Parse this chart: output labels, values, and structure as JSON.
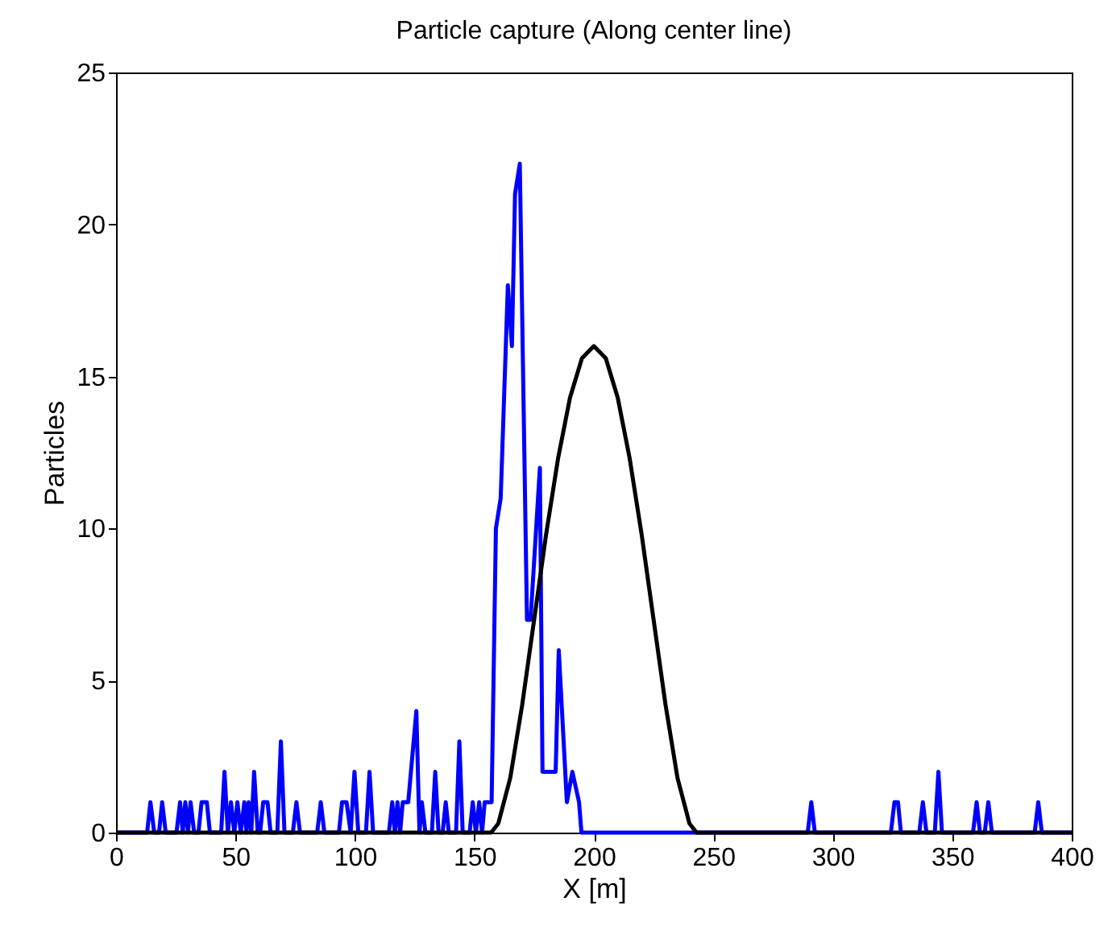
{
  "chart_data": {
    "type": "line",
    "title": "Particle capture (Along center line)",
    "xlabel": "X [m]",
    "ylabel": "Particles",
    "xlim": [
      0,
      400
    ],
    "xticks": [
      0,
      50,
      100,
      150,
      200,
      250,
      300,
      350,
      400
    ],
    "ylim": [
      0,
      25
    ],
    "yticks": [
      0,
      5,
      10,
      15,
      20,
      25
    ],
    "grid": false,
    "legend": false,
    "series": [
      {
        "color": "#0000ff",
        "x": [
          0,
          13,
          14.4,
          16,
          18,
          19.3,
          20.8,
          25.3,
          26.8,
          27.9,
          29,
          30.1,
          31.2,
          32.7,
          34.5,
          35.8,
          38,
          39.3,
          44,
          45.4,
          46.8,
          48.1,
          49.5,
          50.8,
          52.2,
          53.7,
          54.6,
          55.5,
          56.6,
          57.8,
          59.3,
          60.3,
          61.6,
          63.4,
          64.7,
          67.5,
          69,
          70.5,
          74,
          75.5,
          77,
          84.2,
          85.7,
          87.2,
          93.3,
          94.6,
          96.5,
          98.2,
          99.8,
          101.4,
          104.6,
          106.1,
          107.6,
          114.2,
          115.6,
          116.7,
          117.8,
          118.9,
          120,
          122.3,
          125.7,
          127,
          128,
          129.5,
          132.2,
          133.6,
          135,
          136.7,
          138,
          139.3,
          142.3,
          143.7,
          145.1,
          148,
          149.3,
          150.6,
          152,
          153.2,
          154.3,
          157.2,
          158,
          159,
          161,
          164,
          165.7,
          167,
          169,
          172,
          173.5,
          177.4,
          178.5,
          184,
          185.3,
          188.7,
          191,
          193.8,
          194.8,
          289.5,
          291,
          292.5,
          324.3,
          325.8,
          327.3,
          328.5,
          336.2,
          337.7,
          339.2,
          342.7,
          344.2,
          345.7,
          358.7,
          360.2,
          361.6,
          363.6,
          365.1,
          366.6,
          384.5,
          386,
          387.5,
          400
        ],
        "values": [
          0,
          0,
          1,
          0,
          0,
          1,
          0,
          0,
          1,
          0,
          1,
          0,
          1,
          0,
          0,
          1,
          1,
          0,
          0,
          2,
          0,
          1,
          0,
          1,
          0,
          1,
          0,
          1,
          0,
          2,
          0,
          0,
          1,
          1,
          0,
          0,
          3,
          0,
          0,
          1,
          0,
          0,
          1,
          0,
          0,
          1,
          1,
          0,
          2,
          0,
          0,
          2,
          0,
          0,
          1,
          0,
          1,
          0,
          1,
          1,
          4,
          0,
          1,
          0,
          0,
          2,
          0,
          0,
          1,
          0,
          0,
          3,
          0,
          0,
          1,
          0,
          1,
          0,
          1,
          1,
          5,
          10,
          11,
          18,
          16,
          21,
          22,
          7,
          7,
          12,
          2,
          2,
          6,
          1,
          2,
          1,
          0,
          0,
          1,
          0,
          0,
          1,
          1,
          0,
          0,
          1,
          0,
          0,
          2,
          0,
          0,
          1,
          0,
          0,
          1,
          0,
          0,
          1,
          0,
          0
        ]
      },
      {
        "color": "#000000",
        "x": [
          0,
          157,
          160,
          165,
          170,
          175,
          180,
          185,
          190,
          195,
          200,
          205,
          210,
          215,
          220,
          225,
          230,
          235,
          240,
          243,
          400
        ],
        "values": [
          0,
          0,
          0.3,
          1.8,
          4.2,
          7.0,
          9.8,
          12.3,
          14.3,
          15.6,
          16,
          15.6,
          14.3,
          12.3,
          9.8,
          7.0,
          4.2,
          1.8,
          0.3,
          0,
          0
        ]
      }
    ]
  }
}
